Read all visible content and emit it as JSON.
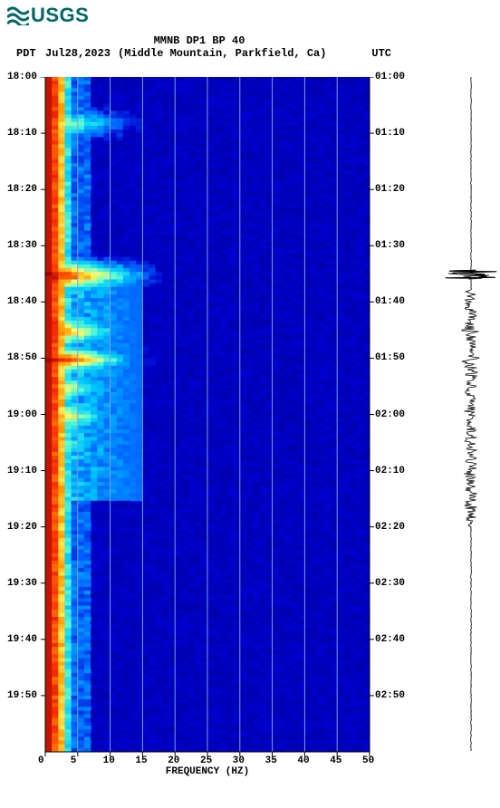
{
  "logo": {
    "text": "USGS"
  },
  "header": {
    "title": "MMNB DP1 BP 40",
    "tz_left": "PDT",
    "tz_right": "UTC",
    "date": "Jul28,2023",
    "location": "(Middle Mountain, Parkfield, Ca)"
  },
  "axes": {
    "x_label": "FREQUENCY (HZ)",
    "x_ticks": [
      0,
      5,
      10,
      15,
      20,
      25,
      30,
      35,
      40,
      45,
      50
    ],
    "y_left_label": "PDT",
    "y_left_ticks": [
      "18:00",
      "18:10",
      "18:20",
      "18:30",
      "18:40",
      "18:50",
      "19:00",
      "19:10",
      "19:20",
      "19:30",
      "19:40",
      "19:50"
    ],
    "y_right_label": "UTC",
    "y_right_ticks": [
      "01:00",
      "01:10",
      "01:20",
      "01:30",
      "01:40",
      "01:50",
      "02:00",
      "02:10",
      "02:20",
      "02:30",
      "02:40",
      "02:50"
    ]
  },
  "style": {
    "background": "#ffffff",
    "spectro_bg": "#0000cc",
    "grid_color": "#7aa0e0",
    "axis_color": "#000000",
    "text_color": "#000000",
    "logo_color": "#006666",
    "font_family": "Courier New",
    "title_fontsize": 12,
    "tick_fontsize": 11,
    "brand_fontsize": 22
  },
  "spectrogram": {
    "type": "spectrogram",
    "xlim": [
      0,
      50
    ],
    "frequency_hz": [
      0,
      5,
      10,
      15,
      20,
      25,
      30,
      35,
      40,
      45,
      50
    ],
    "time_start_pdt": "18:00",
    "time_end_pdt": "20:00",
    "time_start_utc": "01:00",
    "time_end_utc": "03:00",
    "colormap_stops": [
      "#00008b",
      "#0000cc",
      "#0066ff",
      "#00ccff",
      "#66ffcc",
      "#ffff66",
      "#ff9900",
      "#ff3300",
      "#990000"
    ],
    "low_freq_ridge_hz": [
      0,
      3
    ],
    "low_freq_ridge_color": "#ff3300",
    "high_energy_events": [
      {
        "time_pdt": "18:08",
        "freq_hz_range": [
          0,
          15
        ],
        "intensity": 0.6
      },
      {
        "time_pdt": "18:35",
        "freq_hz_range": [
          0,
          18
        ],
        "intensity": 0.95
      },
      {
        "time_pdt": "18:45",
        "freq_hz_range": [
          0,
          14
        ],
        "intensity": 0.85
      },
      {
        "time_pdt": "18:50",
        "freq_hz_range": [
          0,
          16
        ],
        "intensity": 0.9
      },
      {
        "time_pdt": "18:55",
        "freq_hz_range": [
          0,
          12
        ],
        "intensity": 0.7
      },
      {
        "time_pdt": "19:00",
        "freq_hz_range": [
          0,
          12
        ],
        "intensity": 0.75
      },
      {
        "time_pdt": "19:05",
        "freq_hz_range": [
          0,
          10
        ],
        "intensity": 0.6
      }
    ],
    "background_level": 0.1
  },
  "waveform": {
    "type": "seismogram",
    "color": "#000000",
    "baseline_amplitude": 0.1,
    "events": [
      {
        "time_pdt": "18:35",
        "amplitude": 1.0,
        "duration_s": 30
      },
      {
        "time_pdt": "18:45",
        "amplitude": 0.4,
        "duration_s": 60
      },
      {
        "time_pdt": "18:50",
        "amplitude": 0.5,
        "duration_s": 120
      },
      {
        "time_pdt": "19:00",
        "amplitude": 0.3,
        "duration_s": 60
      }
    ]
  }
}
